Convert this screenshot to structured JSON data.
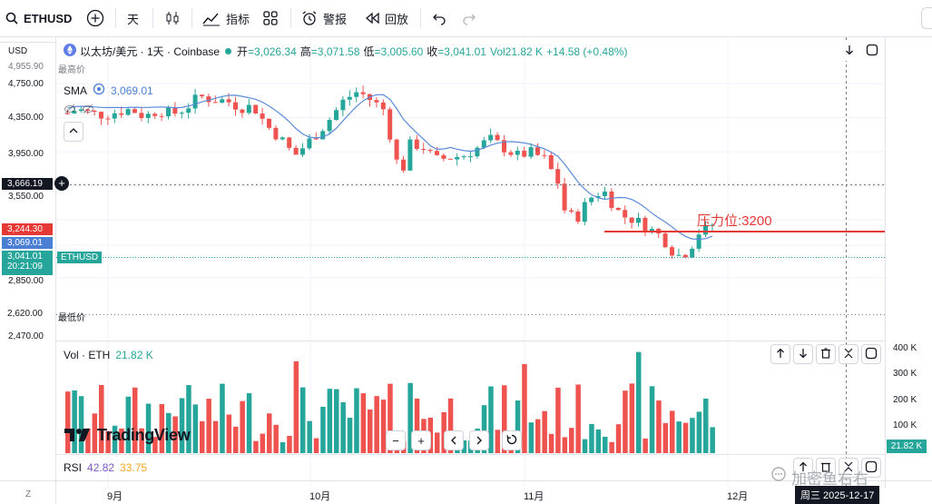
{
  "toolbar": {
    "symbol": "ETHUSD",
    "interval": "天",
    "indicators": "指标",
    "alert": "警报",
    "replay": "回放"
  },
  "legend": {
    "title": "以太坊/美元 · 1天 · Coinbase",
    "open_label": "开",
    "open": "=3,026.34",
    "high_label": "高",
    "high": "=3,071.58",
    "low_label": "低",
    "low": "=3,005.60",
    "close_label": "收",
    "close": "=3,041.01",
    "vol": "Vol21.82 K",
    "change": "+14.58 (+0.48%)",
    "sma_label": "SMA",
    "sma_value": "3,069.01"
  },
  "price_axis": {
    "currency": "USD",
    "ticks": [
      "4,750.00",
      "4,350.00",
      "3,950.00",
      "3,550.00",
      "2,850.00",
      "2,470.00"
    ],
    "top_partial": "4,955.90",
    "high_tag": "最高价",
    "low_tag": "最低价",
    "low_value": "2,620.00",
    "crosshair": "3,666.19",
    "red_level": "3,244.30",
    "sma_level": "3,069.01",
    "last_price": "3,041.01",
    "countdown": "20:21:09",
    "symbol_tag": "ETHUSD"
  },
  "annotation": {
    "text": "压力位:3200",
    "color": "#e53935"
  },
  "colors": {
    "up": "#26a69a",
    "down": "#ef5350",
    "sma": "#5b8ad9",
    "red_line": "#e53935"
  },
  "volume": {
    "label": "Vol · ETH",
    "value": "21.82 K",
    "ticks": [
      "400 K",
      "300 K",
      "200 K",
      "100 K"
    ],
    "last_tag": "21.82 K"
  },
  "rsi": {
    "label": "RSI",
    "v1": "42.82",
    "v2": "33.75"
  },
  "time_axis": [
    "9月",
    "10月",
    "11月",
    "12月"
  ],
  "watermark": "TradingView",
  "cross_date": "周三 2025-12-17",
  "corner_tag": "加密鱼右右",
  "log_button": "Z"
}
